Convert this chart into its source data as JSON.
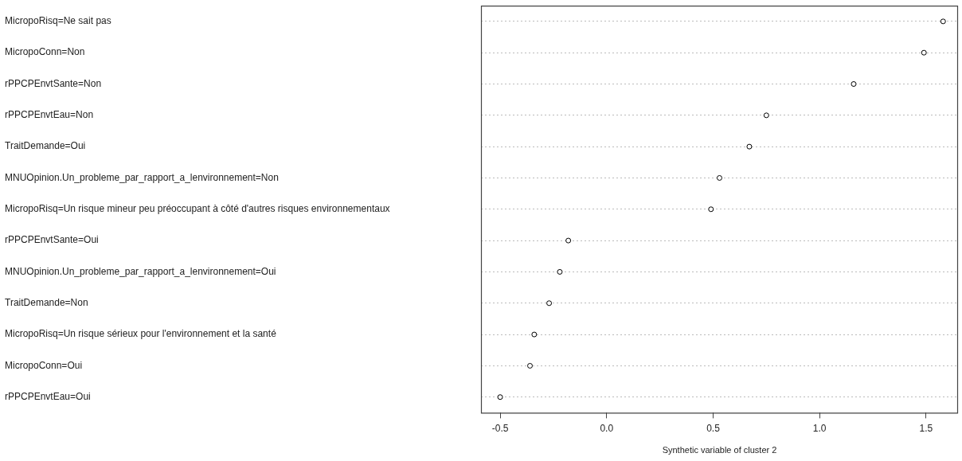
{
  "chart_data": {
    "type": "scatter",
    "orientation": "horizontal",
    "categories": [
      "MicropoRisq=Ne sait pas",
      "MicropoConn=Non",
      "rPPCPEnvtSante=Non",
      "rPPCPEnvtEau=Non",
      "TraitDemande=Oui",
      "MNUOpinion.Un_probleme_par_rapport_a_lenvironnement=Non",
      "MicropoRisq=Un risque mineur peu préoccupant à côté d'autres risques environnementaux",
      "rPPCPEnvtSante=Oui",
      "MNUOpinion.Un_probleme_par_rapport_a_lenvironnement=Oui",
      "TraitDemande=Non",
      "MicropoRisq=Un risque sérieux pour l'environnement et la santé",
      "MicropoConn=Oui",
      "rPPCPEnvtEau=Oui"
    ],
    "values": [
      1.58,
      1.49,
      1.16,
      0.75,
      0.67,
      0.53,
      0.49,
      -0.18,
      -0.22,
      -0.27,
      -0.34,
      -0.36,
      -0.5
    ],
    "color": "#000000",
    "xlim": [
      -0.59,
      1.65
    ],
    "xticks": [
      {
        "value": -0.5,
        "label": "-0.5"
      },
      {
        "value": 0,
        "label": "0.0"
      },
      {
        "value": 0.5,
        "label": "0.5"
      },
      {
        "value": 1,
        "label": "1.0"
      },
      {
        "value": 1.5,
        "label": "1.5"
      }
    ],
    "xlabel": "Synthetic variable of cluster 2",
    "grid": "y",
    "marker": "circle"
  }
}
